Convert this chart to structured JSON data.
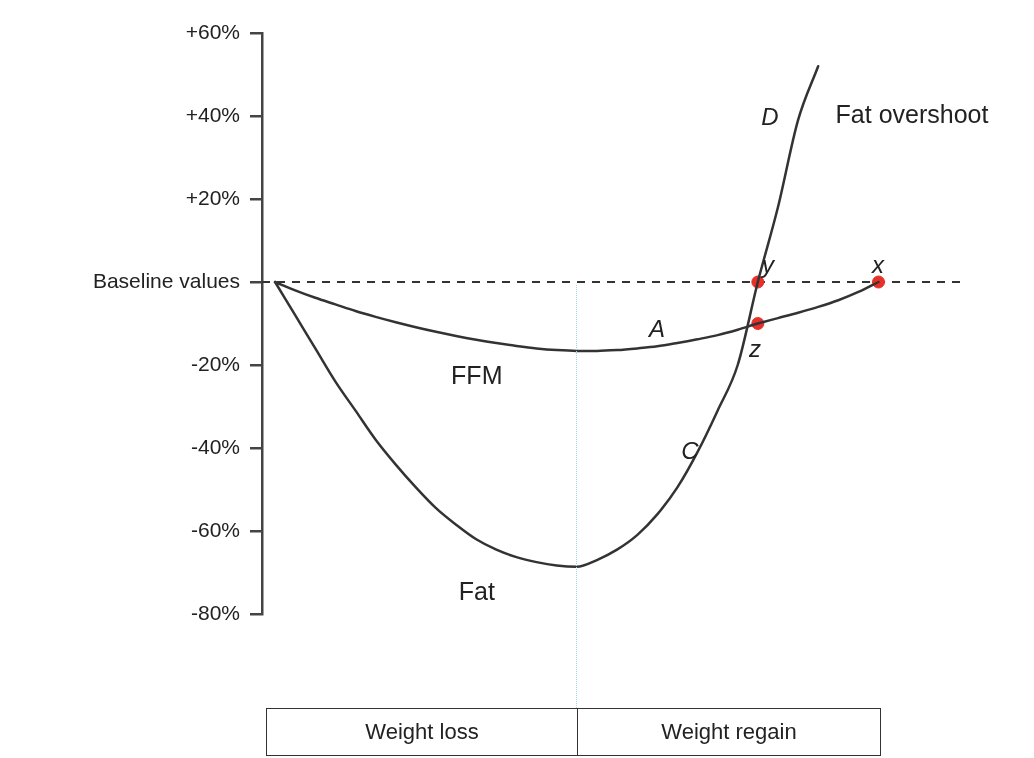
{
  "chart_data": {
    "type": "line",
    "ylim": [
      -80,
      60
    ],
    "categories": [
      null,
      null,
      null,
      null,
      null,
      null,
      null,
      null,
      null,
      null,
      null,
      null,
      null,
      null,
      null,
      null,
      null,
      null,
      null,
      null,
      null,
      null,
      null,
      null,
      null,
      null,
      null,
      null,
      null,
      null,
      null
    ],
    "yticks": [
      {
        "value": 60,
        "label": "+60%"
      },
      {
        "value": 40,
        "label": "+40%"
      },
      {
        "value": 20,
        "label": "+20%"
      },
      {
        "value": 0,
        "label": "Baseline values"
      },
      {
        "value": -20,
        "label": "-20%"
      },
      {
        "value": -40,
        "label": "-40%"
      },
      {
        "value": -60,
        "label": "-60%"
      },
      {
        "value": -80,
        "label": "-80%"
      }
    ],
    "tick_labels": "y",
    "grid": false,
    "marker": "none",
    "series": [
      {
        "name": "FFM",
        "color": "#333333",
        "values": [
          0,
          -2,
          -3.8,
          -5.4,
          -7,
          -8.4,
          -9.7,
          -10.9,
          -12,
          -13,
          -13.9,
          -14.7,
          -15.4,
          -16,
          -16.4,
          -16.6,
          -16.6,
          -16.4,
          -16,
          -15.5,
          -14.7,
          -13.8,
          -12.8,
          -11.5,
          -10,
          -8.7,
          -7.4,
          -6,
          -4.4,
          -2.4,
          0
        ]
      },
      {
        "name": "Fat",
        "color": "#333333",
        "values": [
          0,
          -8,
          -16,
          -24,
          -31,
          -38,
          -44,
          -49.5,
          -54.5,
          -58.5,
          -62,
          -64.5,
          -66.3,
          -67.5,
          -68.3,
          -68.6,
          -67,
          -64.5,
          -61,
          -56,
          -49.5,
          -41,
          -31,
          -20,
          0,
          18,
          39,
          52,
          null,
          null,
          null
        ]
      },
      {
        "type": "scatter",
        "color": "#e8302a",
        "marker": "circle",
        "values": [
          null,
          null,
          null,
          null,
          null,
          null,
          null,
          null,
          null,
          null,
          null,
          null,
          null,
          null,
          null,
          null,
          null,
          null,
          null,
          null,
          null,
          null,
          null,
          null,
          0,
          null,
          null,
          null,
          null,
          null,
          0
        ]
      },
      {
        "type": "scatter",
        "color": "#e8302a",
        "marker": "circle",
        "values": [
          null,
          null,
          null,
          null,
          null,
          null,
          null,
          null,
          null,
          null,
          null,
          null,
          null,
          null,
          null,
          null,
          null,
          null,
          null,
          null,
          null,
          null,
          null,
          null,
          -10,
          null,
          null,
          null,
          null,
          null,
          null
        ]
      }
    ],
    "ref_lines": [
      {
        "axis": "y",
        "value": 0,
        "color": "#333333",
        "line_style": "dashed"
      }
    ],
    "annotations": [
      "A",
      "C",
      "D",
      "Fat overshoot",
      "x",
      "y",
      "z",
      "Weight loss",
      "Weight regain"
    ]
  }
}
